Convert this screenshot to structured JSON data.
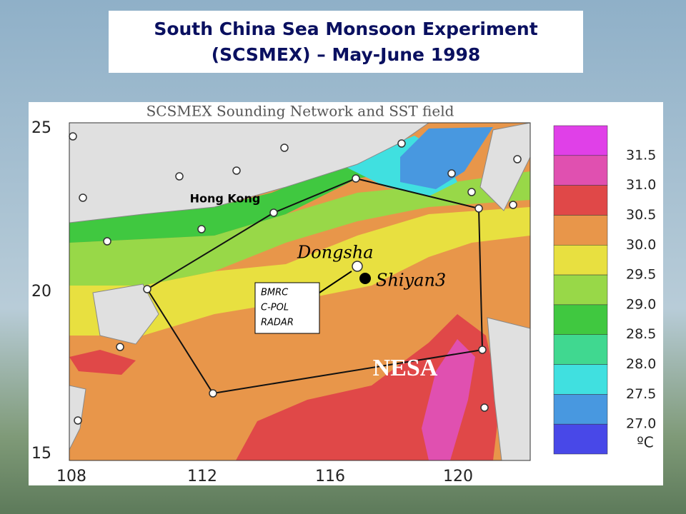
{
  "header": {
    "title_lines": [
      "South China Sea Monsoon Experiment",
      "(SCSMEX) –  May-June 1998"
    ]
  },
  "map": {
    "title": "SCSMEX Sounding Network and SST field",
    "lat_labels": [
      "25",
      "20",
      "15"
    ],
    "lon_labels": [
      "108",
      "112",
      "116",
      "120"
    ],
    "labels": {
      "hong_kong": "Hong Kong",
      "dongsha": "Dongsha",
      "shiyan3": "Shiyan3",
      "nesa": "NESA",
      "radar": [
        "BMRC",
        "C-POL",
        "RADAR"
      ]
    }
  },
  "colorbar": {
    "colors": [
      "#e040e8",
      "#e050b0",
      "#e04848",
      "#e8964a",
      "#e8e040",
      "#98d848",
      "#40c840",
      "#40d890",
      "#40e0e0",
      "#4898e0",
      "#4848e8"
    ],
    "levels": [
      "31.5",
      "31.0",
      "30.5",
      "30.0",
      "29.5",
      "29.0",
      "28.5",
      "28.0",
      "27.5",
      "27.0"
    ],
    "unit": "ºC"
  }
}
